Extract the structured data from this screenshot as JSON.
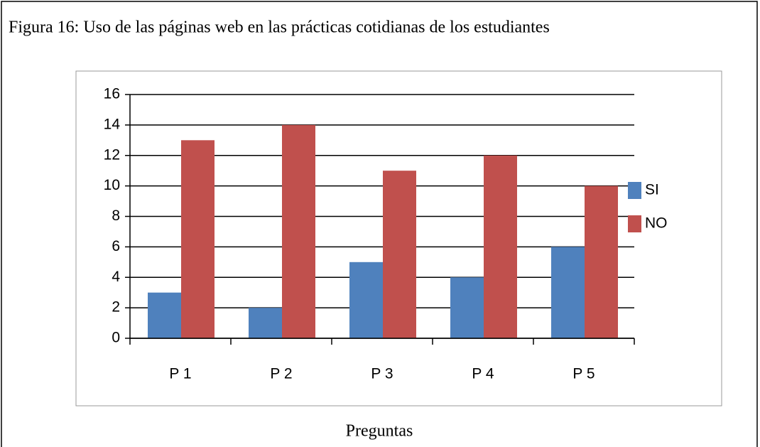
{
  "chart_data": {
    "type": "bar",
    "title": "Figura 16: Uso de las páginas web en las prácticas cotidianas de los estudiantes",
    "xlabel": "Preguntas",
    "categories": [
      "P 1",
      "P 2",
      "P 3",
      "P 4",
      "P 5"
    ],
    "series": [
      {
        "name": "SI",
        "color": "#4f81bd",
        "values": [
          3,
          2,
          5,
          4,
          6
        ]
      },
      {
        "name": "NO",
        "color": "#c0504d",
        "values": [
          13,
          14,
          11,
          12,
          10
        ]
      }
    ],
    "ylim": [
      0,
      16
    ],
    "yticks": [
      0,
      2,
      4,
      6,
      8,
      10,
      12,
      14,
      16
    ],
    "grid": true,
    "legend": "right"
  }
}
